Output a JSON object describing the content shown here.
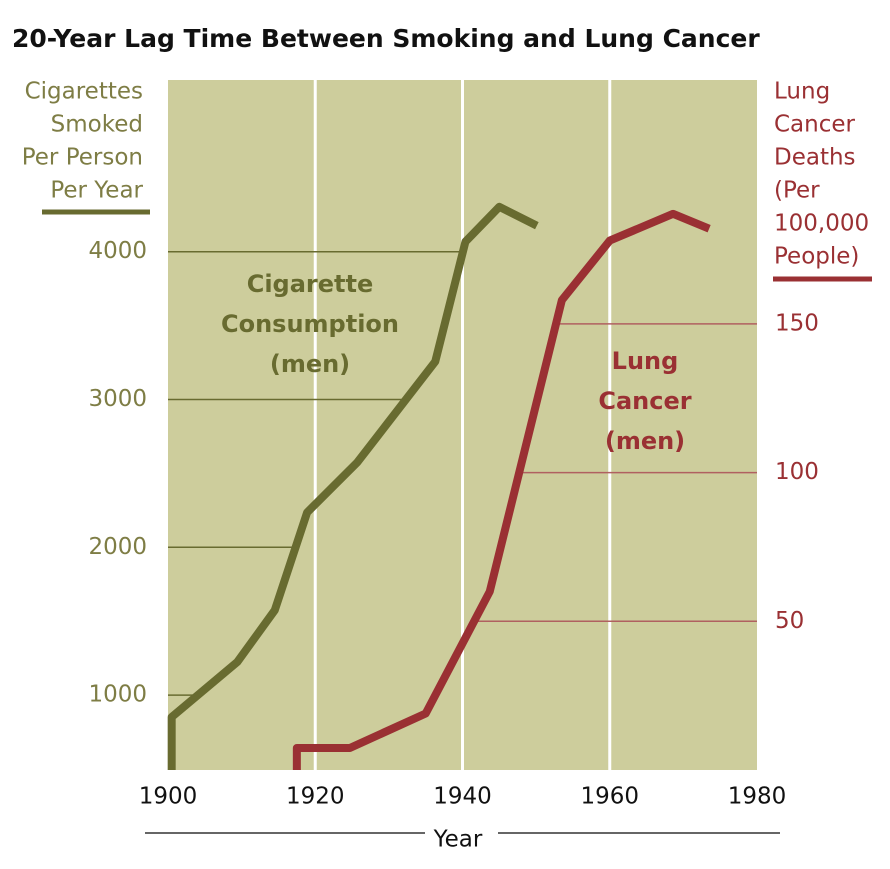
{
  "chart_data": {
    "type": "line",
    "title": "20-Year Lag Time Between Smoking and Lung Cancer",
    "xlabel": "Year",
    "ylabel_lines": [
      "Cigarettes",
      "Smoked",
      "Per Person",
      "Per Year"
    ],
    "y2label_lines": [
      "Lung",
      "Cancer",
      "Deaths",
      "(Per",
      "100,000",
      "People)"
    ],
    "xlim": [
      1900,
      1980
    ],
    "xticks": [
      1900,
      1920,
      1940,
      1960,
      1980
    ],
    "ylim": [
      493,
      5162
    ],
    "yticks": [
      1000,
      2000,
      3000,
      4000
    ],
    "y2lim": [
      0,
      232
    ],
    "y2ticks": [
      50,
      100,
      150
    ],
    "background": "#cdcd9c",
    "grid": true,
    "series": [
      {
        "name_lines": [
          "Cigarette",
          "Consumption",
          "(men)"
        ],
        "color": "#686b30",
        "x": [
          1900.5,
          1900.5,
          1909.4,
          1914.5,
          1918.9,
          1925.7,
          1936.3,
          1940.4,
          1945,
          1950.1
        ],
        "values": [
          493,
          851,
          1223,
          1574,
          2236,
          2574,
          3257,
          4068,
          4304,
          4176
        ]
      },
      {
        "name_lines": [
          "Lung",
          "Cancer",
          "(men)"
        ],
        "color": "#9a3033",
        "axis": "y2",
        "x": [
          1917.5,
          1917.5,
          1924.7,
          1935,
          1943.7,
          1953.5,
          1960,
          1968.6,
          1973.5
        ],
        "values": [
          0,
          7.4,
          7.4,
          19,
          60,
          158,
          178,
          187,
          182
        ]
      }
    ]
  }
}
